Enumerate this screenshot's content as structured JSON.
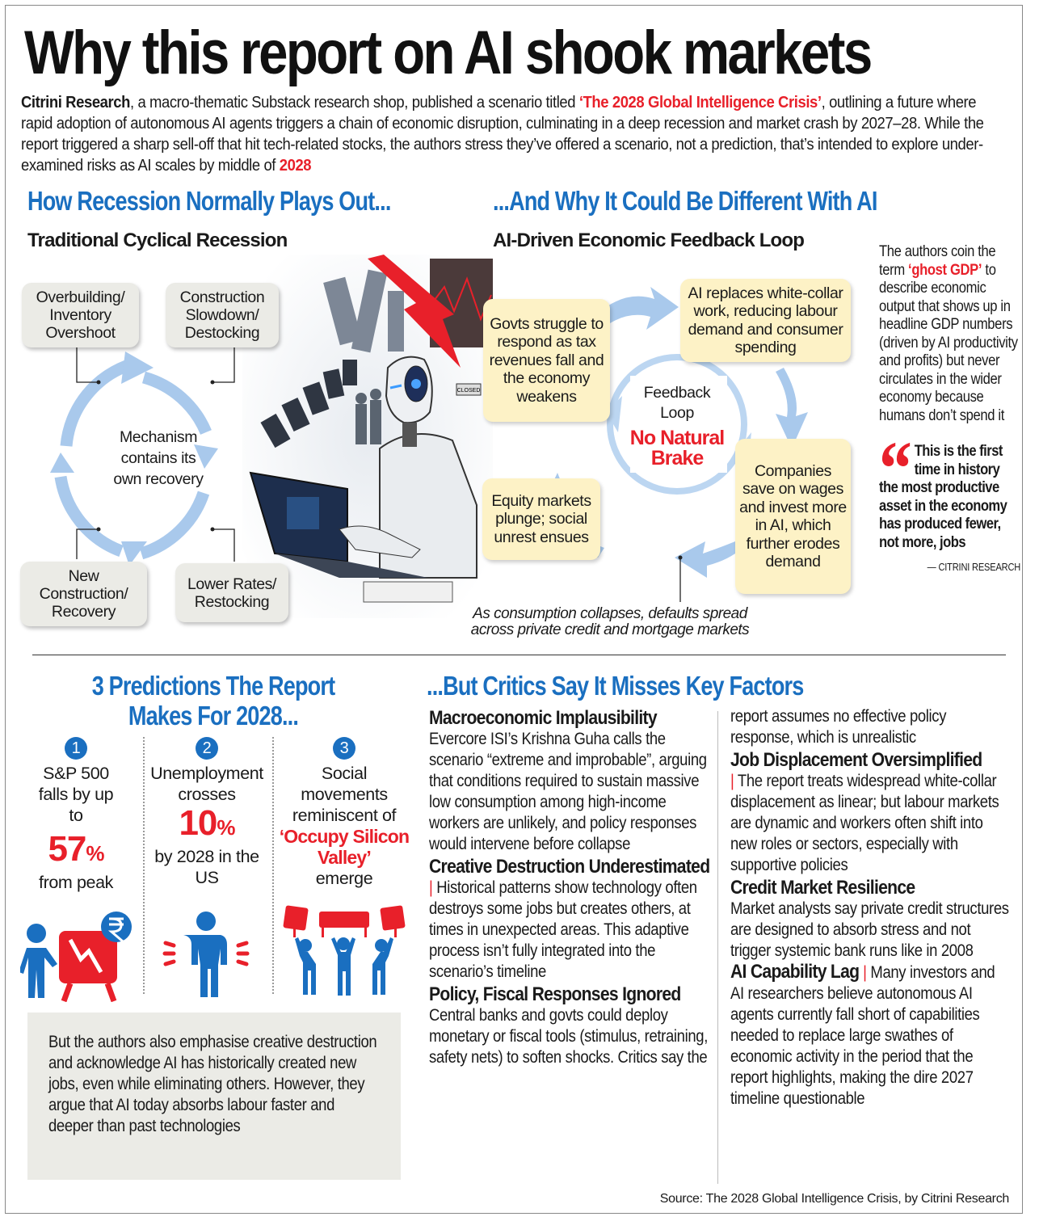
{
  "title": "Why this report on AI shook markets",
  "intro": {
    "p1": "Citrini Research",
    "p2": ", a macro-thematic Substack research shop, published a scenario titled ",
    "p3": "‘The 2028 Global Intelligence Crisis’",
    "p4": ", outlining a future where rapid adoption of autonomous AI agents triggers a chain of economic disruption, culminating in a deep recession and market crash by 2027–28. While the report triggered a sharp sell-off that hit tech-related stocks, the authors stress they’ve offered a scenario, not a prediction, that’s intended to explore under-examined risks as AI scales by middle of ",
    "p5": "2028"
  },
  "left_section": {
    "heading": "How Recession Normally Plays Out...",
    "subheading": "Traditional Cyclical Recession",
    "center": "Mechanism contains its own recovery",
    "boxes": [
      "Overbuilding/ Inventory Overshoot",
      "Construction Slowdown/ Destocking",
      "Lower Rates/ Restocking",
      "New Construction/ Recovery"
    ]
  },
  "illustration": {
    "sign": "CLOSED"
  },
  "right_section": {
    "heading": "...And Why It Could Be Different With AI",
    "subheading": "AI-Driven Economic Feedback Loop",
    "center_label": "Feedback Loop",
    "center_highlight": "No Natural Brake",
    "boxes": [
      "AI replaces white-collar work, reducing labour demand and consumer spending",
      "Companies save on wages and invest more in AI, which further erodes demand",
      "Equity markets plunge; social unrest ensues",
      "Govts struggle to respond as tax revenues fall and the economy weakens"
    ],
    "caption": "As consumption collapses, defaults spread across private credit and mortgage markets"
  },
  "sidebar": {
    "t1": "The authors coin the term ",
    "t2": "‘ghost GDP’",
    "t3": " to describe economic output that shows up in headline GDP numbers (driven by AI productivity and profits) but never circulates in the wider economy because humans don’t spend it",
    "quote": "This is the first time in history the most productive asset in the economy has produced fewer, not more, jobs",
    "attribution": "— CITRINI RESEARCH"
  },
  "predictions": {
    "heading": "3 Predictions The Report Makes For 2028...",
    "items": [
      {
        "num": "1",
        "pre": "S&P 500 falls by up to",
        "value": "57",
        "unit": "%",
        "post": "from peak",
        "icon": "chart-falling-rupee-icon"
      },
      {
        "num": "2",
        "pre": "Unemployment crosses",
        "value": "10",
        "unit": "%",
        "post": "by 2028 in the US",
        "icon": "unemployed-person-icon"
      },
      {
        "num": "3",
        "pre": "Social movements reminiscent of",
        "highlight": "‘Occupy Silicon Valley’",
        "post": "emerge",
        "icon": "protest-icon"
      }
    ],
    "note": "But the authors also emphasise creative destruction and acknowledge AI has historically created new jobs, even while eliminating others. However, they argue that AI today absorbs labour faster and deeper than past technologies"
  },
  "critics": {
    "heading": "...But Critics Say It Misses Key Factors",
    "col1": [
      {
        "title": "Macroeconomic Implausibility",
        "text": "Evercore ISI’s Krishna Guha calls the scenario “extreme and improbable”, arguing that conditions required to sustain massive low consumption among high-income workers are unlikely, and policy responses would intervene before collapse"
      },
      {
        "title": "Creative Destruction Underestimated",
        "text": "Historical patterns show technology often destroys some jobs but creates others, at times in unexpected areas. This adaptive process isn’t fully integrated into the scenario’s timeline"
      },
      {
        "title": "Policy, Fiscal Responses Ignored",
        "text": "Central banks and govts could deploy monetary or fiscal tools (stimulus, retraining, safety nets) to soften shocks. Critics say the"
      }
    ],
    "col2_cont": "report assumes no effective policy response, which is unrealistic",
    "col2": [
      {
        "title": "Job Displacement Oversimplified",
        "text": "The report treats widespread white-collar displacement as linear; but labour markets are dynamic and workers often shift into new roles or sectors, especially with supportive policies"
      },
      {
        "title": "Credit Market Resilience",
        "text": "Market analysts say private credit structures are designed to absorb stress and not trigger systemic bank runs like in 2008"
      },
      {
        "title": "AI Capability Lag",
        "text": "Many investors and AI researchers believe autonomous AI agents currently fall short of capabilities needed to replace large swathes of economic activity in the period that the report highlights, making the dire 2027 timeline questionable"
      }
    ]
  },
  "source": "Source: The 2028 Global Intelligence Crisis, by Citrini Research",
  "colors": {
    "blue": "#1a6fc0",
    "red": "#e8202a",
    "yellow_box": "#fdf2c6",
    "gray_box": "#ebebe6",
    "arrow": "#a9c9ec"
  }
}
